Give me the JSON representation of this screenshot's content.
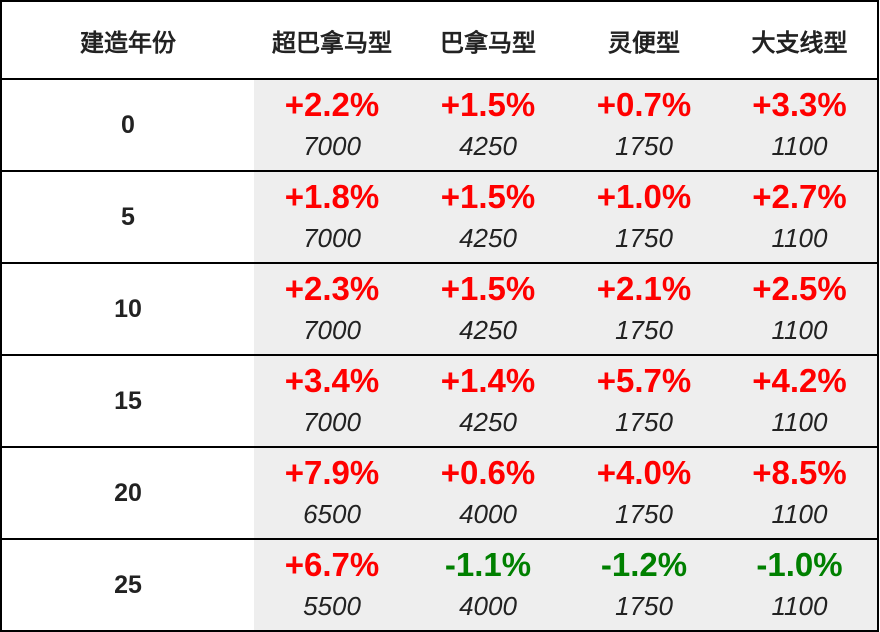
{
  "chart_data": {
    "type": "table",
    "columns": [
      "建造年份",
      "超巴拿马型",
      "巴拿马型",
      "灵便型",
      "大支线型"
    ],
    "rows": [
      {
        "year": "0",
        "cells": [
          {
            "change": "+2.2%",
            "value": "7000"
          },
          {
            "change": "+1.5%",
            "value": "4250"
          },
          {
            "change": "+0.7%",
            "value": "1750"
          },
          {
            "change": "+3.3%",
            "value": "1100"
          }
        ]
      },
      {
        "year": "5",
        "cells": [
          {
            "change": "+1.8%",
            "value": "7000"
          },
          {
            "change": "+1.5%",
            "value": "4250"
          },
          {
            "change": "+1.0%",
            "value": "1750"
          },
          {
            "change": "+2.7%",
            "value": "1100"
          }
        ]
      },
      {
        "year": "10",
        "cells": [
          {
            "change": "+2.3%",
            "value": "7000"
          },
          {
            "change": "+1.5%",
            "value": "4250"
          },
          {
            "change": "+2.1%",
            "value": "1750"
          },
          {
            "change": "+2.5%",
            "value": "1100"
          }
        ]
      },
      {
        "year": "15",
        "cells": [
          {
            "change": "+3.4%",
            "value": "7000"
          },
          {
            "change": "+1.4%",
            "value": "4250"
          },
          {
            "change": "+5.7%",
            "value": "1750"
          },
          {
            "change": "+4.2%",
            "value": "1100"
          }
        ]
      },
      {
        "year": "20",
        "cells": [
          {
            "change": "+7.9%",
            "value": "6500"
          },
          {
            "change": "+0.6%",
            "value": "4000"
          },
          {
            "change": "+4.0%",
            "value": "1750"
          },
          {
            "change": "+8.5%",
            "value": "1100"
          }
        ]
      },
      {
        "year": "25",
        "cells": [
          {
            "change": "+6.7%",
            "value": "5500"
          },
          {
            "change": "-1.1%",
            "value": "4000"
          },
          {
            "change": "-1.2%",
            "value": "1750"
          },
          {
            "change": "-1.0%",
            "value": "1100"
          }
        ]
      }
    ],
    "colors": {
      "positive": "#ff0000",
      "negative": "#008000"
    }
  }
}
